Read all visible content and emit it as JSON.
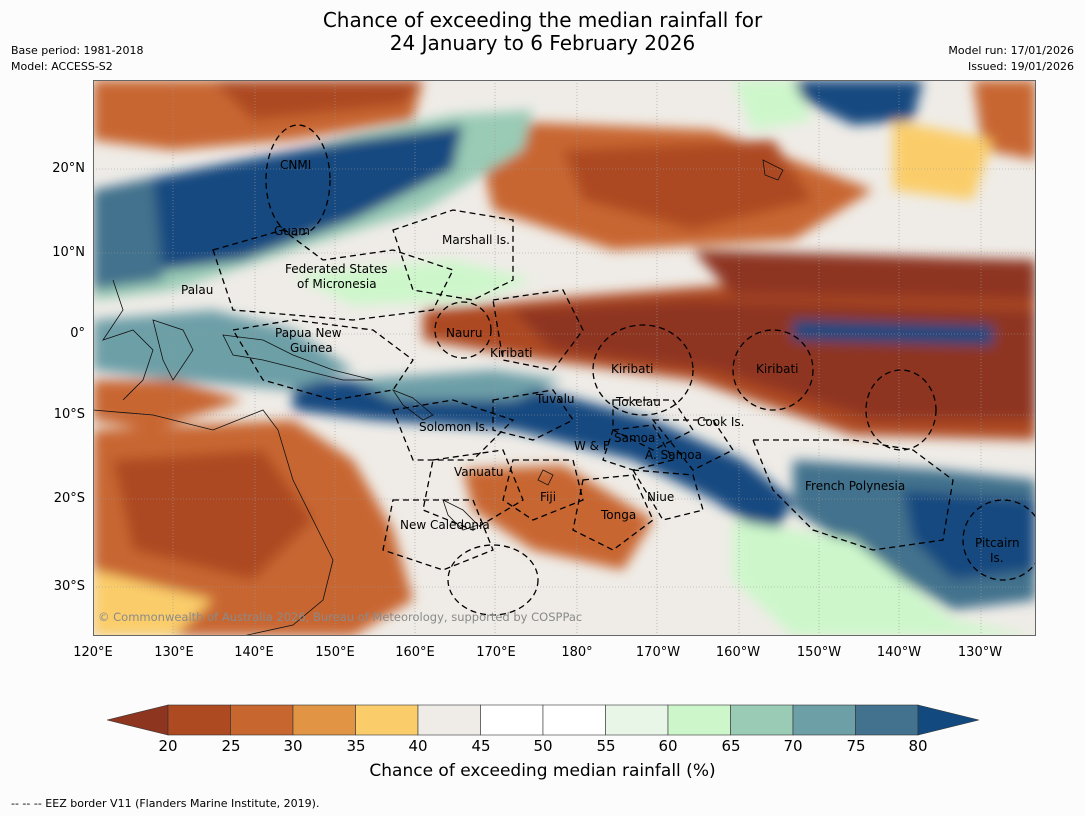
{
  "header": {
    "title_line1": "Chance of exceeding the median rainfall for",
    "title_line2": "24 January to 6 February 2026",
    "base_period": "Base period: 1981-2018",
    "model": "Model: ACCESS-S2",
    "model_run": "Model run: 17/01/2026",
    "issued": "Issued: 19/01/2026"
  },
  "map": {
    "lat_labels": [
      "20°N",
      "10°N",
      "0°",
      "10°S",
      "20°S",
      "30°S"
    ],
    "lon_labels": [
      "120°E",
      "130°E",
      "140°E",
      "150°E",
      "160°E",
      "170°E",
      "180°",
      "170°W",
      "160°W",
      "150°W",
      "140°W",
      "130°W"
    ],
    "places": [
      {
        "name": "CNMI"
      },
      {
        "name": "Guam"
      },
      {
        "name": "Marshall Is."
      },
      {
        "name": "Federated States"
      },
      {
        "name": "of Micronesia"
      },
      {
        "name": "Palau"
      },
      {
        "name": "Papua New"
      },
      {
        "name": "Guinea"
      },
      {
        "name": "Nauru"
      },
      {
        "name": "Kiribati"
      },
      {
        "name": "Kiribati"
      },
      {
        "name": "Kiribati"
      },
      {
        "name": "Tuvalu"
      },
      {
        "name": "Tokelau"
      },
      {
        "name": "Cook Is."
      },
      {
        "name": "Solomon Is."
      },
      {
        "name": "Samoa"
      },
      {
        "name": "W & F"
      },
      {
        "name": "A. Samoa"
      },
      {
        "name": "Vanuatu"
      },
      {
        "name": "Fiji"
      },
      {
        "name": "Niue"
      },
      {
        "name": "French Polynesia"
      },
      {
        "name": "Tonga"
      },
      {
        "name": "New Caledonia"
      },
      {
        "name": "Pitcairn"
      },
      {
        "name": "Is."
      }
    ],
    "copyright": "© Commonwealth of Australia 2026, Bureau of Meteorology, supported by COSPPac"
  },
  "legend": {
    "ticks": [
      "20",
      "25",
      "30",
      "35",
      "40",
      "45",
      "50",
      "55",
      "60",
      "65",
      "70",
      "75",
      "80"
    ],
    "colors": [
      "#8e3520",
      "#ad4a22",
      "#c86630",
      "#e09444",
      "#fbcd6a",
      "#efece7",
      "#ffffff",
      "#ffffff",
      "#e8f6e8",
      "#cdf7cb",
      "#99cbb5",
      "#6d9fa7",
      "#42728d",
      "#124a80"
    ],
    "title": "Chance of exceeding median rainfall (%)"
  },
  "footer": {
    "eez_note": "--  --  -- EEZ border V11 (Flanders Marine Institute, 2019)."
  }
}
